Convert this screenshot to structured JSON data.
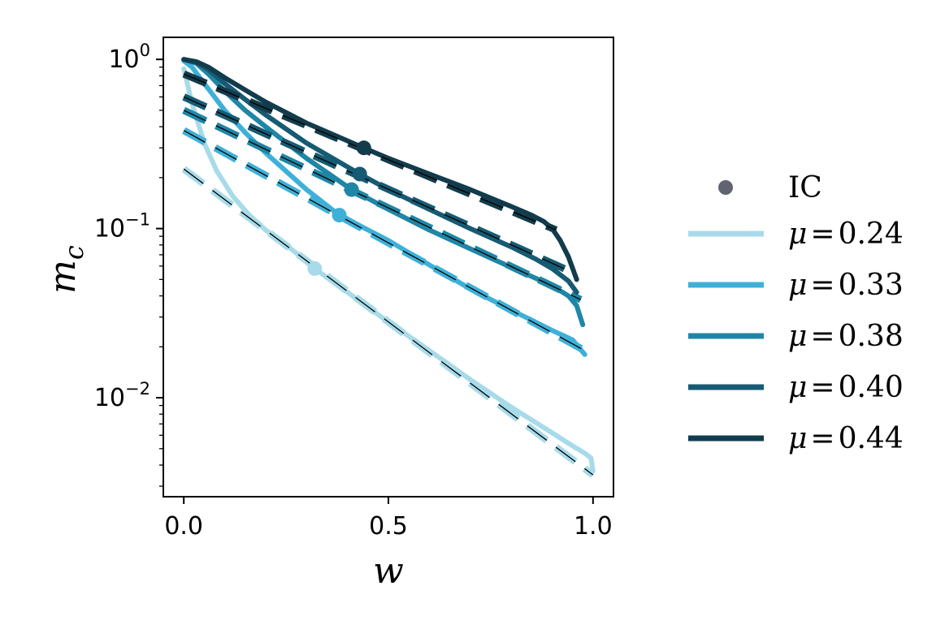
{
  "chart_data": {
    "type": "line",
    "title": "",
    "xlabel": "w",
    "ylabel": "m",
    "ylabel_sub": "c",
    "xlim": [
      -0.05,
      1.05
    ],
    "ylim": [
      0.0026,
      1.35
    ],
    "yscale": "log",
    "x_ticks": [
      {
        "value": 0.0,
        "label": "0.0"
      },
      {
        "value": 0.5,
        "label": "0.5"
      },
      {
        "value": 1.0,
        "label": "1.0"
      }
    ],
    "y_ticks": [
      {
        "value": 1,
        "base": "10",
        "exp": "0"
      },
      {
        "value": 0.1,
        "base": "10",
        "exp": "−1"
      },
      {
        "value": 0.01,
        "base": "10",
        "exp": "−2"
      }
    ],
    "grid": false,
    "legend_position": "right",
    "ic_legend_label": "IC",
    "ic_color": "#5f6470",
    "series": [
      {
        "name": "μ = 0.24",
        "legend_mu": "μ",
        "legend_eq": "=",
        "legend_value": "0.24",
        "color": "#a8dbe9",
        "solid": [
          [
            0.0,
            0.88
          ],
          [
            0.02,
            0.55
          ],
          [
            0.05,
            0.32
          ],
          [
            0.08,
            0.22
          ],
          [
            0.12,
            0.155
          ],
          [
            0.16,
            0.12
          ],
          [
            0.2,
            0.098
          ],
          [
            0.25,
            0.08
          ],
          [
            0.3,
            0.064
          ],
          [
            0.32,
            0.058
          ],
          [
            0.4,
            0.042
          ],
          [
            0.5,
            0.028
          ],
          [
            0.6,
            0.019
          ],
          [
            0.7,
            0.0128
          ],
          [
            0.8,
            0.0088
          ],
          [
            0.9,
            0.0062
          ],
          [
            0.95,
            0.0052
          ],
          [
            0.98,
            0.0047
          ],
          [
            0.995,
            0.0044
          ],
          [
            1.0,
            0.0037
          ]
        ],
        "fit": [
          [
            0.0,
            0.225
          ],
          [
            1.0,
            0.0035
          ]
        ],
        "ic": [
          0.32,
          0.058
        ]
      },
      {
        "name": "μ = 0.33",
        "legend_mu": "μ",
        "legend_eq": "=",
        "legend_value": "0.33",
        "color": "#3eb0d8",
        "solid": [
          [
            0.0,
            0.98
          ],
          [
            0.02,
            0.9
          ],
          [
            0.05,
            0.72
          ],
          [
            0.1,
            0.5
          ],
          [
            0.15,
            0.37
          ],
          [
            0.2,
            0.28
          ],
          [
            0.3,
            0.17
          ],
          [
            0.38,
            0.12
          ],
          [
            0.5,
            0.085
          ],
          [
            0.6,
            0.061
          ],
          [
            0.7,
            0.044
          ],
          [
            0.8,
            0.033
          ],
          [
            0.9,
            0.025
          ],
          [
            0.95,
            0.022
          ],
          [
            0.98,
            0.018
          ]
        ],
        "fit": [
          [
            0.0,
            0.38
          ],
          [
            0.98,
            0.019
          ]
        ],
        "ic": [
          0.38,
          0.12
        ]
      },
      {
        "name": "μ = 0.38",
        "legend_mu": "μ",
        "legend_eq": "=",
        "legend_value": "0.38",
        "color": "#1f86a6",
        "solid": [
          [
            0.0,
            1.0
          ],
          [
            0.03,
            0.95
          ],
          [
            0.06,
            0.82
          ],
          [
            0.1,
            0.65
          ],
          [
            0.15,
            0.5
          ],
          [
            0.2,
            0.4
          ],
          [
            0.3,
            0.26
          ],
          [
            0.41,
            0.17
          ],
          [
            0.5,
            0.13
          ],
          [
            0.6,
            0.098
          ],
          [
            0.7,
            0.076
          ],
          [
            0.8,
            0.059
          ],
          [
            0.9,
            0.046
          ],
          [
            0.94,
            0.04
          ],
          [
            0.96,
            0.035
          ],
          [
            0.975,
            0.027
          ]
        ],
        "fit": [
          [
            0.0,
            0.5
          ],
          [
            0.97,
            0.038
          ]
        ],
        "ic": [
          0.41,
          0.17
        ]
      },
      {
        "name": "μ = 0.40",
        "legend_mu": "μ",
        "legend_eq": "=",
        "legend_value": "0.40",
        "color": "#165a73",
        "solid": [
          [
            0.0,
            1.0
          ],
          [
            0.03,
            0.96
          ],
          [
            0.06,
            0.87
          ],
          [
            0.1,
            0.72
          ],
          [
            0.15,
            0.58
          ],
          [
            0.2,
            0.47
          ],
          [
            0.3,
            0.32
          ],
          [
            0.43,
            0.21
          ],
          [
            0.5,
            0.17
          ],
          [
            0.6,
            0.13
          ],
          [
            0.7,
            0.1
          ],
          [
            0.8,
            0.078
          ],
          [
            0.86,
            0.066
          ],
          [
            0.9,
            0.058
          ],
          [
            0.94,
            0.049
          ],
          [
            0.96,
            0.042
          ]
        ],
        "fit": [
          [
            0.0,
            0.6
          ],
          [
            0.95,
            0.055
          ]
        ],
        "ic": [
          0.43,
          0.21
        ]
      },
      {
        "name": "μ = 0.44",
        "legend_mu": "μ",
        "legend_eq": "=",
        "legend_value": "0.44",
        "color": "#123c4c",
        "solid": [
          [
            0.0,
            1.0
          ],
          [
            0.03,
            0.97
          ],
          [
            0.06,
            0.9
          ],
          [
            0.1,
            0.78
          ],
          [
            0.15,
            0.66
          ],
          [
            0.2,
            0.56
          ],
          [
            0.3,
            0.42
          ],
          [
            0.44,
            0.3
          ],
          [
            0.5,
            0.26
          ],
          [
            0.6,
            0.21
          ],
          [
            0.7,
            0.17
          ],
          [
            0.8,
            0.135
          ],
          [
            0.85,
            0.12
          ],
          [
            0.88,
            0.11
          ],
          [
            0.9,
            0.1
          ],
          [
            0.92,
            0.085
          ],
          [
            0.94,
            0.068
          ],
          [
            0.96,
            0.05
          ]
        ],
        "fit": [
          [
            0.0,
            0.82
          ],
          [
            0.91,
            0.098
          ]
        ],
        "ic": [
          0.44,
          0.3
        ]
      }
    ]
  }
}
